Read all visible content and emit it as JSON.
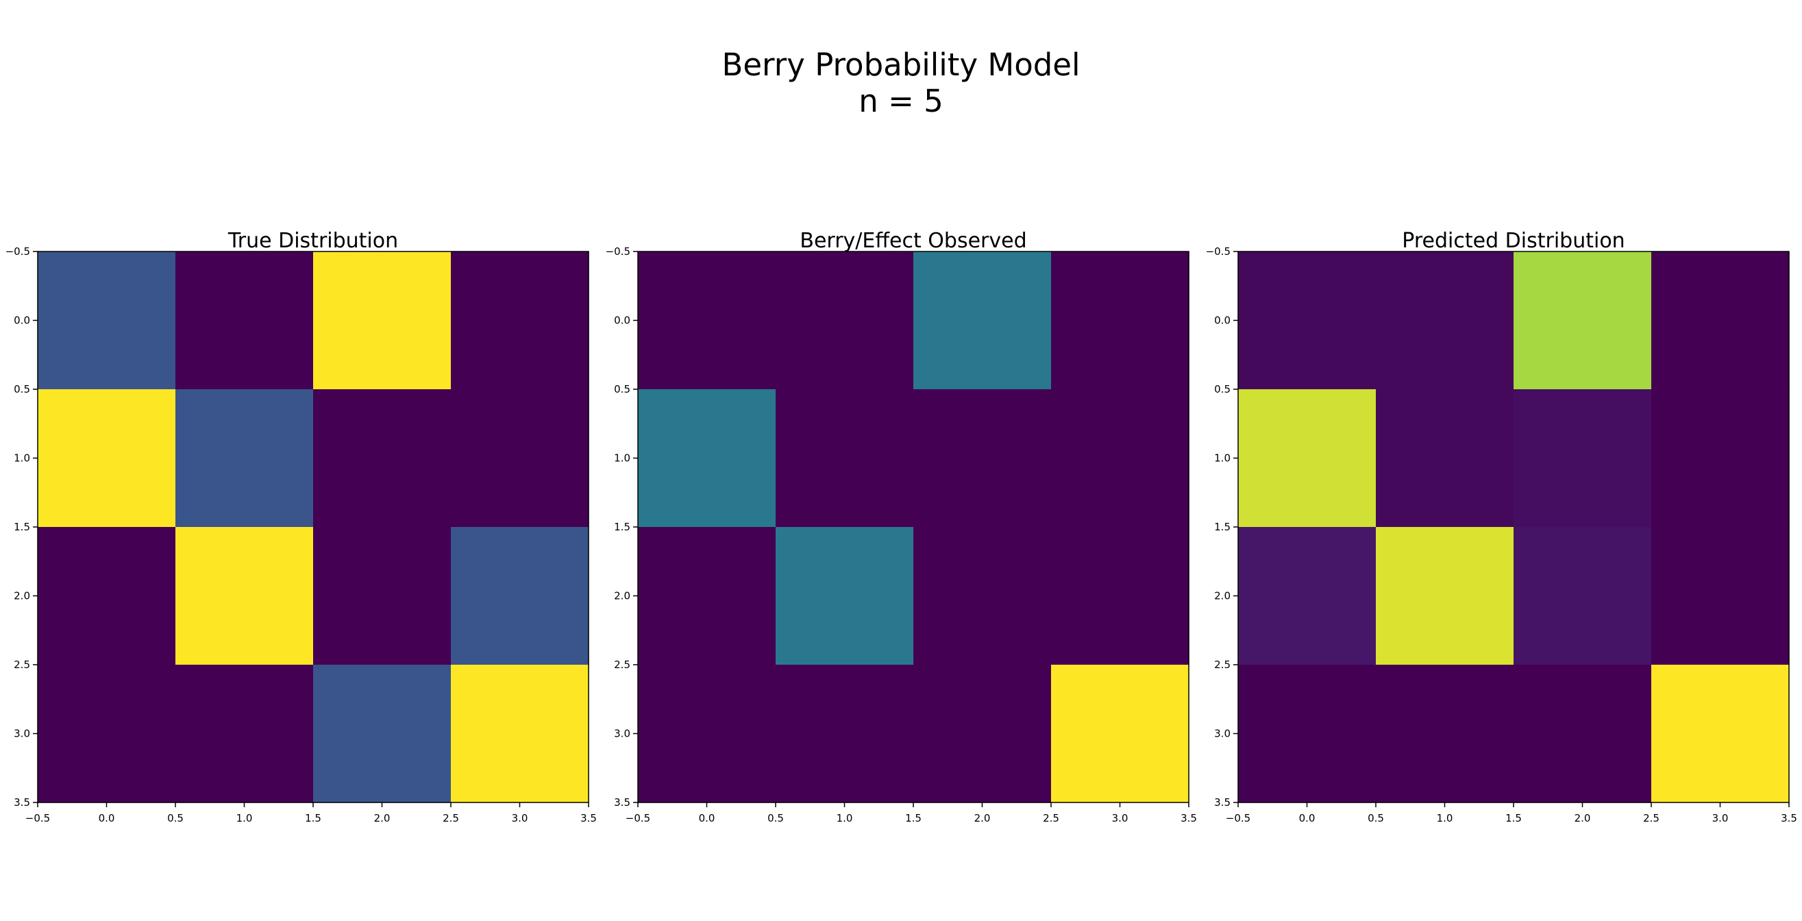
{
  "figure": {
    "title_line1": "Berry Probability Model",
    "title_line2": "n = 5"
  },
  "chart_data": [
    {
      "type": "heatmap",
      "title": "True Distribution",
      "colormap": "viridis",
      "xlim": [
        -0.5,
        3.5
      ],
      "ylim": [
        3.5,
        -0.5
      ],
      "xticks": [
        "−0.5",
        "0.0",
        "0.5",
        "1.0",
        "1.5",
        "2.0",
        "2.5",
        "3.0",
        "3.5"
      ],
      "yticks": [
        "−0.5",
        "0.0",
        "0.5",
        "1.0",
        "1.5",
        "2.0",
        "2.5",
        "3.0",
        "3.5"
      ],
      "grid": false,
      "values": [
        [
          0.33,
          0.0,
          1.0,
          0.0
        ],
        [
          1.0,
          0.33,
          0.0,
          0.0
        ],
        [
          0.0,
          1.0,
          0.0,
          0.33
        ],
        [
          0.0,
          0.0,
          0.33,
          1.0
        ]
      ]
    },
    {
      "type": "heatmap",
      "title": "Berry/Effect Observed",
      "colormap": "viridis",
      "xlim": [
        -0.5,
        3.5
      ],
      "ylim": [
        3.5,
        -0.5
      ],
      "xticks": [
        "−0.5",
        "0.0",
        "0.5",
        "1.0",
        "1.5",
        "2.0",
        "2.5",
        "3.0",
        "3.5"
      ],
      "yticks": [
        "−0.5",
        "0.0",
        "0.5",
        "1.0",
        "1.5",
        "2.0",
        "2.5",
        "3.0",
        "3.5"
      ],
      "grid": false,
      "values": [
        [
          0.0,
          0.0,
          0.5,
          0.0
        ],
        [
          0.5,
          0.0,
          0.0,
          0.0
        ],
        [
          0.0,
          0.5,
          0.0,
          0.0
        ],
        [
          0.0,
          0.0,
          0.0,
          1.0
        ]
      ]
    },
    {
      "type": "heatmap",
      "title": "Predicted Distribution",
      "colormap": "viridis",
      "xlim": [
        -0.5,
        3.5
      ],
      "ylim": [
        3.5,
        -0.5
      ],
      "xticks": [
        "−0.5",
        "0.0",
        "0.5",
        "1.0",
        "1.5",
        "2.0",
        "2.5",
        "3.0",
        "3.5"
      ],
      "yticks": [
        "−0.5",
        "0.0",
        "0.5",
        "1.0",
        "1.5",
        "2.0",
        "2.5",
        "3.0",
        "3.5"
      ],
      "grid": false,
      "values": [
        [
          0.03,
          0.03,
          0.92,
          0.0
        ],
        [
          0.96,
          0.03,
          0.05,
          0.0
        ],
        [
          0.08,
          0.97,
          0.07,
          0.0
        ],
        [
          0.0,
          0.0,
          0.0,
          1.0
        ]
      ]
    }
  ]
}
